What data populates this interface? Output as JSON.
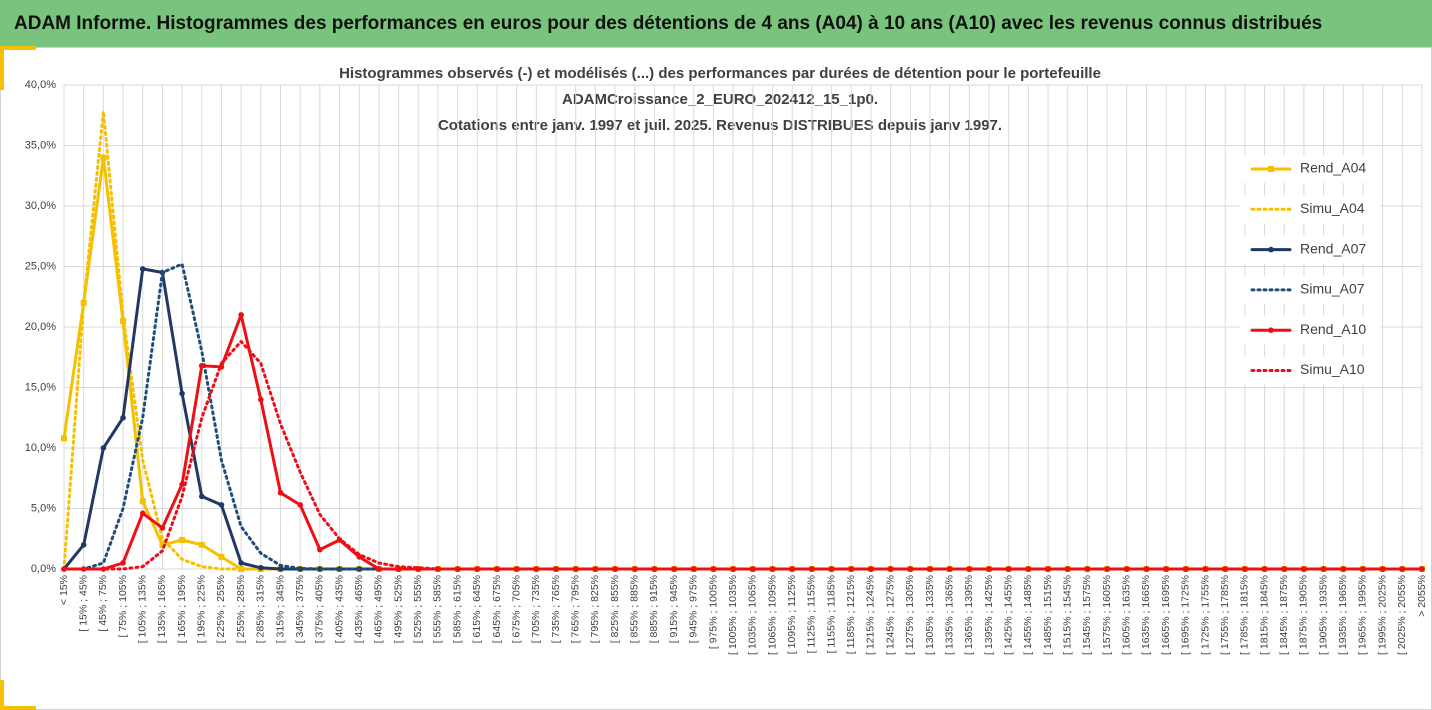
{
  "header": {
    "title": "ADAM Informe. Histogrammes des performances en euros pour des détentions de 4 ans (A04) à 10 ans (A10) avec les revenus connus distribués"
  },
  "chart_data": {
    "type": "line",
    "title": [
      "Histogrammes observés (-) et modélisés (...) des performances par durées de détention pour le portefeuille",
      "ADAMCroissance_2_EURO_202412_15_1p0.",
      "Cotations entre janv. 1997 et juil. 2025. Revenus DISTRIBUES depuis janv 1997."
    ],
    "categories": [
      "< 15%",
      "[ 15% ; 45%",
      "[ 45% ; 75%",
      "[ 75% ; 105%",
      "[ 105% ; 135%",
      "[ 135% ; 165%",
      "[ 165% ; 195%",
      "[ 195% ; 225%",
      "[ 225% ; 255%",
      "[ 255% ; 285%",
      "[ 285% ; 315%",
      "[ 315% ; 345%",
      "[ 345% ; 375%",
      "[ 375% ; 405%",
      "[ 405% ; 435%",
      "[ 435% ; 465%",
      "[ 465% ; 495%",
      "[ 495% ; 525%",
      "[ 525% ; 555%",
      "[ 555% ; 585%",
      "[ 585% ; 615%",
      "[ 615% ; 645%",
      "[ 645% ; 675%",
      "[ 675% ; 705%",
      "[ 705% ; 735%",
      "[ 735% ; 765%",
      "[ 765% ; 795%",
      "[ 795% ; 825%",
      "[ 825% ; 855%",
      "[ 855% ; 885%",
      "[ 885% ; 915%",
      "[ 915% ; 945%",
      "[ 945% ; 975%",
      "[ 975% ; 1005%",
      "[ 1005% ; 1035%",
      "[ 1035% ; 1065%",
      "[ 1065% ; 1095%",
      "[ 1095% ; 1125%",
      "[ 1125% ; 1155%",
      "[ 1155% ; 1185%",
      "[ 1185% ; 1215%",
      "[ 1215% ; 1245%",
      "[ 1245% ; 1275%",
      "[ 1275% ; 1305%",
      "[ 1305% ; 1335%",
      "[ 1335% ; 1365%",
      "[ 1365% ; 1395%",
      "[ 1395% ; 1425%",
      "[ 1425% ; 1455%",
      "[ 1455% ; 1485%",
      "[ 1485% ; 1515%",
      "[ 1515% ; 1545%",
      "[ 1545% ; 1575%",
      "[ 1575% ; 1605%",
      "[ 1605% ; 1635%",
      "[ 1635% ; 1665%",
      "[ 1665% ; 1695%",
      "[ 1695% ; 1725%",
      "[ 1725% ; 1755%",
      "[ 1755% ; 1785%",
      "[ 1785% ; 1815%",
      "[ 1815% ; 1845%",
      "[ 1845% ; 1875%",
      "[ 1875% ; 1905%",
      "[ 1905% ; 1935%",
      "[ 1935% ; 1965%",
      "[ 1965% ; 1995%",
      "[ 1995% ; 2025%",
      "[ 2025% ; 2055%",
      "> 2055%"
    ],
    "series": [
      {
        "name": "Rend_A04",
        "color": "#f5c000",
        "style": "solid",
        "marker": "square",
        "values": [
          10.8,
          22,
          34,
          20.5,
          5.6,
          2.0,
          2.4,
          2.0,
          1.0,
          0,
          0,
          0,
          0,
          0,
          0,
          0,
          0,
          0,
          0,
          0,
          0,
          0,
          0,
          0,
          0,
          0,
          0,
          0,
          0,
          0,
          0,
          0,
          0,
          0,
          0,
          0,
          0,
          0,
          0,
          0,
          0,
          0,
          0,
          0,
          0,
          0,
          0,
          0,
          0,
          0,
          0,
          0,
          0,
          0,
          0,
          0,
          0,
          0,
          0,
          0,
          0,
          0,
          0,
          0,
          0,
          0,
          0,
          0,
          0,
          0
        ]
      },
      {
        "name": "Simu_A04",
        "color": "#f5c000",
        "style": "dotted",
        "values": [
          0,
          22,
          37.8,
          21,
          9,
          2.5,
          0.8,
          0.2,
          0,
          0,
          0,
          0,
          0,
          0,
          0,
          0,
          0,
          0,
          0,
          0,
          0,
          0,
          0,
          0,
          0,
          0,
          0,
          0,
          0,
          0,
          0,
          0,
          0,
          0,
          0,
          0,
          0,
          0,
          0,
          0,
          0,
          0,
          0,
          0,
          0,
          0,
          0,
          0,
          0,
          0,
          0,
          0,
          0,
          0,
          0,
          0,
          0,
          0,
          0,
          0,
          0,
          0,
          0,
          0,
          0,
          0,
          0,
          0,
          0,
          0
        ]
      },
      {
        "name": "Rend_A07",
        "color": "#1f3864",
        "style": "solid",
        "marker": "circle",
        "values": [
          0,
          2.0,
          10,
          12.5,
          24.8,
          24.5,
          14.5,
          6.0,
          5.3,
          0.5,
          0.1,
          0,
          0,
          0,
          0,
          0,
          0,
          0,
          0,
          0,
          0,
          0,
          0,
          0,
          0,
          0,
          0,
          0,
          0,
          0,
          0,
          0,
          0,
          0,
          0,
          0,
          0,
          0,
          0,
          0,
          0,
          0,
          0,
          0,
          0,
          0,
          0,
          0,
          0,
          0,
          0,
          0,
          0,
          0,
          0,
          0,
          0,
          0,
          0,
          0,
          0,
          0,
          0,
          0,
          0,
          0,
          0,
          0,
          0,
          0
        ]
      },
      {
        "name": "Simu_A07",
        "color": "#1f4e79",
        "style": "dotted",
        "values": [
          0,
          0,
          0.5,
          5,
          12.5,
          24.5,
          25.2,
          18,
          9,
          3.5,
          1.3,
          0.3,
          0.05,
          0,
          0,
          0,
          0,
          0,
          0,
          0,
          0,
          0,
          0,
          0,
          0,
          0,
          0,
          0,
          0,
          0,
          0,
          0,
          0,
          0,
          0,
          0,
          0,
          0,
          0,
          0,
          0,
          0,
          0,
          0,
          0,
          0,
          0,
          0,
          0,
          0,
          0,
          0,
          0,
          0,
          0,
          0,
          0,
          0,
          0,
          0,
          0,
          0,
          0,
          0,
          0,
          0,
          0,
          0,
          0,
          0
        ]
      },
      {
        "name": "Rend_A10",
        "color": "#ee0f16",
        "style": "solid",
        "marker": "circle",
        "values": [
          0,
          0,
          0,
          0.5,
          4.6,
          3.4,
          7,
          16.8,
          16.7,
          21,
          14,
          6.3,
          5.3,
          1.6,
          2.4,
          1.0,
          0,
          0,
          0,
          0,
          0,
          0,
          0,
          0,
          0,
          0,
          0,
          0,
          0,
          0,
          0,
          0,
          0,
          0,
          0,
          0,
          0,
          0,
          0,
          0,
          0,
          0,
          0,
          0,
          0,
          0,
          0,
          0,
          0,
          0,
          0,
          0,
          0,
          0,
          0,
          0,
          0,
          0,
          0,
          0,
          0,
          0,
          0,
          0,
          0,
          0,
          0,
          0,
          0,
          0
        ]
      },
      {
        "name": "Simu_A10",
        "color": "#ee0f16",
        "style": "dotted",
        "values": [
          0,
          0,
          0,
          0,
          0.2,
          1.5,
          6,
          12.5,
          17,
          18.8,
          17,
          12,
          8,
          4.5,
          2.5,
          1.2,
          0.5,
          0.2,
          0.1,
          0,
          0,
          0,
          0,
          0,
          0,
          0,
          0,
          0,
          0,
          0,
          0,
          0,
          0,
          0,
          0,
          0,
          0,
          0,
          0,
          0,
          0,
          0,
          0,
          0,
          0,
          0,
          0,
          0,
          0,
          0,
          0,
          0,
          0,
          0,
          0,
          0,
          0,
          0,
          0,
          0,
          0,
          0,
          0,
          0,
          0,
          0,
          0,
          0,
          0,
          0
        ]
      }
    ],
    "ylim": [
      0,
      40
    ],
    "yticks": [
      {
        "value": 0,
        "label": "0,0%"
      },
      {
        "value": 5,
        "label": "5,0%"
      },
      {
        "value": 10,
        "label": "10,0%"
      },
      {
        "value": 15,
        "label": "15,0%"
      },
      {
        "value": 20,
        "label": "20,0%"
      },
      {
        "value": 25,
        "label": "25,0%"
      },
      {
        "value": 30,
        "label": "30,0%"
      },
      {
        "value": 35,
        "label": "35,0%"
      },
      {
        "value": 40,
        "label": "40,0%"
      }
    ],
    "grid": true,
    "legend": "right"
  }
}
